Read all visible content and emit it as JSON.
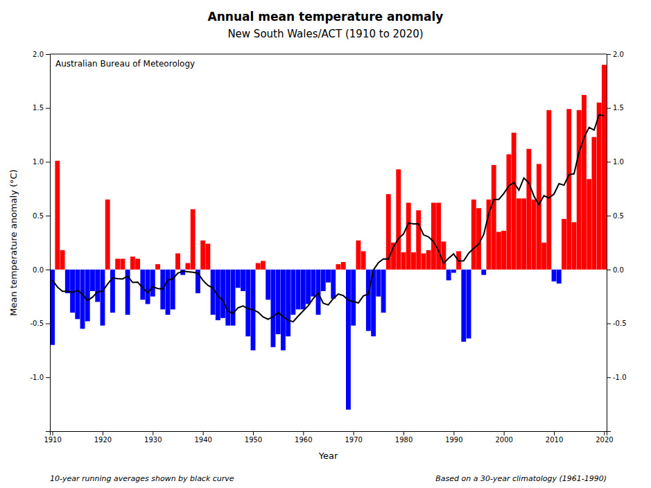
{
  "chart_data": {
    "type": "bar",
    "title": "Annual mean temperature anomaly",
    "subtitle": "New South Wales/ACT (1910 to 2020)",
    "x_label": "Year",
    "y_label": "Mean temperature anomaly (°C)",
    "annotations": [
      "Australian Bureau of Meteorology",
      "10-year running averages shown by black curve",
      "Based on a 30-year climatology (1961-1990)"
    ],
    "x": [
      1910,
      1911,
      1912,
      1913,
      1914,
      1915,
      1916,
      1917,
      1918,
      1919,
      1920,
      1921,
      1922,
      1923,
      1924,
      1925,
      1926,
      1927,
      1928,
      1929,
      1930,
      1931,
      1932,
      1933,
      1934,
      1935,
      1936,
      1937,
      1938,
      1939,
      1940,
      1941,
      1942,
      1943,
      1944,
      1945,
      1946,
      1947,
      1948,
      1949,
      1950,
      1951,
      1952,
      1953,
      1954,
      1955,
      1956,
      1957,
      1958,
      1959,
      1960,
      1961,
      1962,
      1963,
      1964,
      1965,
      1966,
      1967,
      1968,
      1969,
      1970,
      1971,
      1972,
      1973,
      1974,
      1975,
      1976,
      1977,
      1978,
      1979,
      1980,
      1981,
      1982,
      1983,
      1984,
      1985,
      1986,
      1987,
      1988,
      1989,
      1990,
      1991,
      1992,
      1993,
      1994,
      1995,
      1996,
      1997,
      1998,
      1999,
      2000,
      2001,
      2002,
      2003,
      2004,
      2005,
      2006,
      2007,
      2008,
      2009,
      2010,
      2011,
      2012,
      2013,
      2014,
      2015,
      2016,
      2017,
      2018,
      2019,
      2020
    ],
    "series": [
      {
        "type": "bar",
        "values": [
          -0.7,
          1.01,
          0.18,
          -0.22,
          -0.4,
          -0.46,
          -0.55,
          -0.48,
          -0.2,
          -0.3,
          -0.52,
          0.65,
          -0.4,
          0.1,
          0.1,
          -0.42,
          0.12,
          0.1,
          -0.28,
          -0.32,
          -0.25,
          0.05,
          -0.37,
          -0.42,
          -0.37,
          0.15,
          -0.05,
          0.06,
          0.56,
          -0.22,
          0.27,
          0.24,
          -0.42,
          -0.47,
          -0.45,
          -0.52,
          -0.52,
          -0.17,
          -0.2,
          -0.62,
          -0.75,
          0.06,
          0.08,
          -0.28,
          -0.72,
          -0.6,
          -0.75,
          -0.62,
          -0.42,
          -0.37,
          -0.37,
          -0.32,
          -0.25,
          -0.42,
          -0.2,
          -0.12,
          -0.27,
          0.05,
          0.07,
          -1.3,
          -0.52,
          0.27,
          0.17,
          -0.57,
          -0.62,
          -0.25,
          -0.4,
          0.7,
          0.25,
          0.93,
          0.16,
          0.62,
          0.16,
          0.55,
          0.15,
          0.18,
          0.62,
          0.62,
          0.26,
          -0.1,
          -0.03,
          0.17,
          -0.67,
          -0.64,
          0.65,
          0.57,
          -0.05,
          0.65,
          0.97,
          0.35,
          0.36,
          1.07,
          1.27,
          0.66,
          0.66,
          1.12,
          0.65,
          0.98,
          0.25,
          1.48,
          -0.11,
          -0.13,
          0.47,
          1.49,
          0.44,
          1.48,
          1.62,
          0.84,
          1.23,
          1.55,
          1.9
        ],
        "colors": [
          "#0000FF",
          "#FF0000",
          "#FF0000",
          "#0000FF",
          "#0000FF",
          "#0000FF",
          "#0000FF",
          "#0000FF",
          "#0000FF",
          "#0000FF",
          "#0000FF",
          "#FF0000",
          "#0000FF",
          "#FF0000",
          "#FF0000",
          "#0000FF",
          "#FF0000",
          "#FF0000",
          "#0000FF",
          "#0000FF",
          "#0000FF",
          "#FF0000",
          "#0000FF",
          "#0000FF",
          "#0000FF",
          "#FF0000",
          "#0000FF",
          "#FF0000",
          "#FF0000",
          "#0000FF",
          "#FF0000",
          "#FF0000",
          "#0000FF",
          "#0000FF",
          "#0000FF",
          "#0000FF",
          "#0000FF",
          "#0000FF",
          "#0000FF",
          "#0000FF",
          "#0000FF",
          "#FF0000",
          "#FF0000",
          "#0000FF",
          "#0000FF",
          "#0000FF",
          "#0000FF",
          "#0000FF",
          "#0000FF",
          "#0000FF",
          "#0000FF",
          "#0000FF",
          "#0000FF",
          "#0000FF",
          "#0000FF",
          "#0000FF",
          "#0000FF",
          "#FF0000",
          "#FF0000",
          "#0000FF",
          "#0000FF",
          "#FF0000",
          "#FF0000",
          "#0000FF",
          "#0000FF",
          "#0000FF",
          "#0000FF",
          "#FF0000",
          "#FF0000",
          "#FF0000",
          "#FF0000",
          "#FF0000",
          "#FF0000",
          "#FF0000",
          "#FF0000",
          "#FF0000",
          "#FF0000",
          "#FF0000",
          "#FF0000",
          "#0000FF",
          "#0000FF",
          "#FF0000",
          "#0000FF",
          "#0000FF",
          "#FF0000",
          "#FF0000",
          "#0000FF",
          "#FF0000",
          "#FF0000",
          "#FF0000",
          "#FF0000",
          "#FF0000",
          "#FF0000",
          "#FF0000",
          "#FF0000",
          "#FF0000",
          "#FF0000",
          "#FF0000",
          "#FF0000",
          "#FF0000",
          "#0000FF",
          "#0000FF",
          "#FF0000",
          "#FF0000",
          "#FF0000",
          "#FF0000",
          "#FF0000",
          "#FF0000",
          "#FF0000",
          "#FF0000",
          "#FF0000"
        ]
      },
      {
        "type": "line",
        "color": "#000000",
        "values": [
          -0.0983,
          -0.1629,
          -0.2025,
          -0.2022,
          -0.212,
          -0.194,
          -0.23,
          -0.288,
          -0.256,
          -0.206,
          -0.202,
          -0.135,
          -0.077,
          -0.085,
          -0.087,
          -0.06,
          -0.12,
          -0.117,
          -0.169,
          -0.216,
          -0.159,
          -0.176,
          -0.18,
          -0.096,
          -0.086,
          -0.034,
          -0.015,
          -0.02,
          -0.025,
          -0.033,
          -0.1,
          -0.147,
          -0.17,
          -0.246,
          -0.286,
          -0.388,
          -0.406,
          -0.356,
          -0.337,
          -0.364,
          -0.372,
          -0.395,
          -0.44,
          -0.462,
          -0.437,
          -0.399,
          -0.437,
          -0.47,
          -0.484,
          -0.432,
          -0.384,
          -0.336,
          -0.269,
          -0.22,
          -0.313,
          -0.328,
          -0.269,
          -0.227,
          -0.242,
          -0.284,
          -0.297,
          -0.31,
          -0.245,
          -0.227,
          -0.004,
          0.064,
          0.099,
          0.098,
          0.21,
          0.287,
          0.33,
          0.432,
          0.424,
          0.425,
          0.322,
          0.303,
          0.258,
          0.175,
          0.056,
          0.106,
          0.145,
          0.078,
          0.081,
          0.152,
          0.197,
          0.236,
          0.326,
          0.52,
          0.65,
          0.651,
          0.706,
          0.776,
          0.809,
          0.737,
          0.85,
          0.803,
          0.683,
          0.603,
          0.686,
          0.664,
          0.7,
          0.797,
          0.783,
          0.881,
          0.888,
          1.089,
          1.2244,
          1.31875,
          1.2943,
          1.4367,
          1.428
        ]
      }
    ],
    "xlim": [
      1909.5,
      2020.5
    ],
    "xticks": [
      1910,
      1920,
      1930,
      1940,
      1950,
      1960,
      1970,
      1980,
      1990,
      2000,
      2010,
      2020
    ],
    "ylim": [
      -1.5,
      2.0
    ],
    "yticks": [
      {
        "value": -1.0,
        "label": "-1.0"
      },
      -0.5,
      {
        "value": 0.0,
        "label": "0.0"
      },
      0.5,
      {
        "value": 1.0,
        "label": "1.0"
      },
      1.5,
      {
        "value": 2.0,
        "label": "2.0"
      }
    ],
    "y2lim": [
      -1.5,
      2.0
    ],
    "y2ticks": [
      {
        "value": -1.0,
        "label": "-1.0"
      },
      -0.5,
      {
        "value": 0.0,
        "label": "0.0"
      },
      0.5,
      {
        "value": 1.0,
        "label": "1.0"
      },
      1.5,
      {
        "value": 2.0,
        "label": "2.0"
      }
    ],
    "grid": false
  }
}
